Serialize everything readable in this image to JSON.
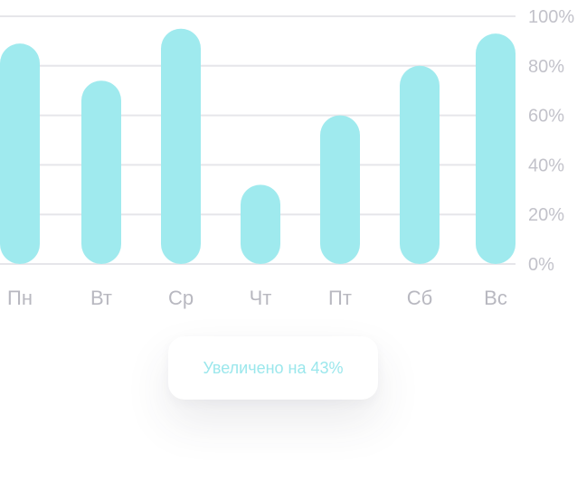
{
  "chart_data": {
    "type": "bar",
    "categories": [
      "Пн",
      "Вт",
      "Ср",
      "Чт",
      "Пт",
      "Сб",
      "Вс"
    ],
    "values": [
      89,
      74,
      95,
      32,
      60,
      80,
      93
    ],
    "ylim": [
      0,
      100
    ],
    "yticks": [
      "0%",
      "20%",
      "40%",
      "60%",
      "80%",
      "100%"
    ],
    "ytick_values": [
      0,
      20,
      40,
      60,
      80,
      100
    ],
    "grid": true,
    "bar_color": "#9feaee",
    "grid_color": "#e6e6ea"
  },
  "badge": {
    "text": "Увеличено на 43%"
  }
}
